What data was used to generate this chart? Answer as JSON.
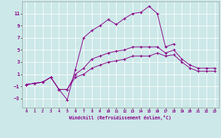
{
  "xlabel": "Windchill (Refroidissement éolien,°C)",
  "bg_color": "#cce8e8",
  "line_color": "#880088",
  "grid_color": "#aacccc",
  "xlim": [
    -0.5,
    23.5
  ],
  "ylim": [
    -4.5,
    13.0
  ],
  "xticks": [
    0,
    1,
    2,
    3,
    4,
    5,
    6,
    7,
    8,
    9,
    10,
    11,
    12,
    13,
    14,
    15,
    16,
    17,
    18,
    19,
    20,
    21,
    22,
    23
  ],
  "yticks": [
    -3,
    -1,
    1,
    3,
    5,
    7,
    9,
    11
  ],
  "s1_x": [
    0,
    1,
    2,
    3,
    4,
    5,
    6,
    7,
    8,
    9,
    10,
    11,
    12,
    13,
    14,
    15,
    16,
    17,
    18,
    19,
    20,
    21,
    22,
    23
  ],
  "s1_y": [
    -0.7,
    -0.5,
    -0.3,
    0.5,
    -1.5,
    -3.2,
    1.8,
    7.0,
    8.2,
    9.0,
    10.0,
    9.2,
    10.2,
    11.0,
    11.2,
    12.2,
    11.0,
    5.5,
    6.0,
    null,
    null,
    null,
    null,
    null
  ],
  "s2_x": [
    0,
    1,
    2,
    3,
    4,
    5,
    6,
    7,
    8,
    9,
    10,
    11,
    12,
    13,
    14,
    15,
    16,
    17,
    18,
    19,
    20,
    21,
    22,
    23
  ],
  "s2_y": [
    -0.7,
    -0.5,
    -0.3,
    0.5,
    -1.5,
    -1.5,
    1.0,
    2.0,
    3.5,
    4.0,
    4.5,
    4.8,
    5.0,
    5.5,
    5.5,
    5.5,
    5.5,
    4.5,
    5.0,
    3.5,
    2.5,
    2.0,
    2.0,
    2.0
  ],
  "s3_x": [
    0,
    1,
    2,
    3,
    4,
    5,
    6,
    7,
    8,
    9,
    10,
    11,
    12,
    13,
    14,
    15,
    16,
    17,
    18,
    19,
    20,
    21,
    22,
    23
  ],
  "s3_y": [
    -0.7,
    -0.5,
    -0.3,
    0.5,
    -1.5,
    -1.5,
    0.5,
    1.0,
    2.0,
    2.5,
    3.0,
    3.2,
    3.5,
    4.0,
    4.0,
    4.0,
    4.5,
    4.0,
    4.2,
    3.0,
    2.0,
    1.5,
    1.5,
    1.5
  ]
}
